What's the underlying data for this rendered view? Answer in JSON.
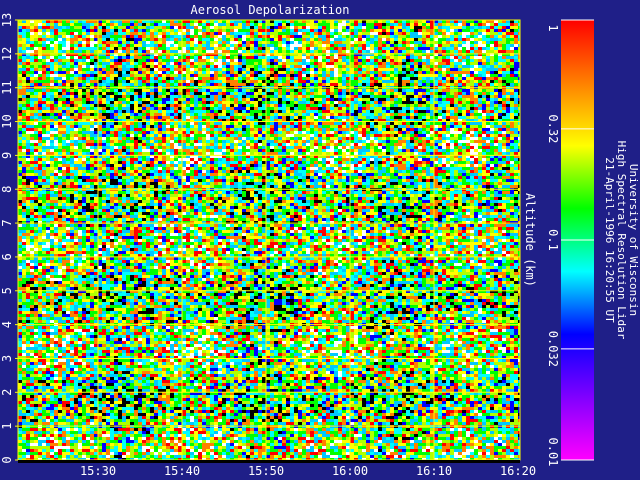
{
  "chart_data": {
    "type": "heatmap",
    "title": "Aerosol Depolarization",
    "ylabel": "Altitude (km)",
    "ylim": [
      0,
      13
    ],
    "y_ticks": [
      "0",
      "1",
      "2",
      "3",
      "4",
      "5",
      "6",
      "7",
      "8",
      "9",
      "10",
      "11",
      "12",
      "13"
    ],
    "x_ticks": [
      "15:30",
      "15:40",
      "15:50",
      "16:00",
      "16:10",
      "16:20"
    ],
    "colorbar": {
      "scale": "log",
      "range": [
        0.01,
        1
      ],
      "ticks": [
        "0.01",
        "0.032",
        "0.1",
        "0.32",
        "1"
      ],
      "stops": [
        "#ff00ff",
        "#8000ff",
        "#0000ff",
        "#00ffff",
        "#00ff00",
        "#ffff00",
        "#ff8000",
        "#ff0000"
      ]
    },
    "grid": true,
    "grid_color": "#ffff00",
    "background": "#1f1f88"
  },
  "credit": {
    "line1": "University of Wisconsin",
    "line2": "High Spectral Resolution Lidar",
    "line3": "21-April-1996 16:20:55 UT"
  }
}
